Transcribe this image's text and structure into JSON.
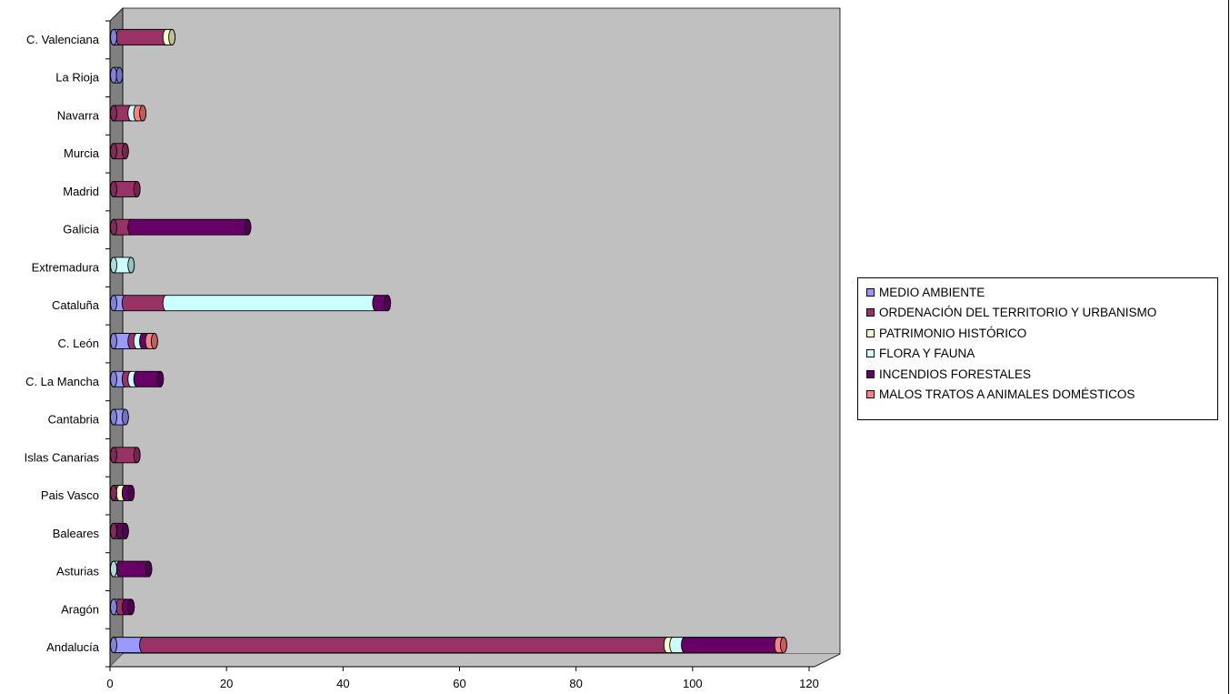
{
  "chart_data": {
    "type": "bar",
    "orientation": "horizontal",
    "stacked": true,
    "categories": [
      "Andalucía",
      "Aragón",
      "Asturias",
      "Baleares",
      "Pais Vasco",
      "Islas Canarias",
      "Cantabria",
      "C. La Mancha",
      "C. León",
      "Cataluña",
      "Extremadura",
      "Galicia",
      "Madrid",
      "Murcia",
      "Navarra",
      "La Rioja",
      "C. Valenciana"
    ],
    "series": [
      {
        "name": "MEDIO AMBIENTE",
        "color": "#9999FF",
        "values": [
          5,
          1,
          0,
          0,
          0,
          0,
          2,
          2,
          3,
          2,
          0,
          0,
          0,
          0,
          0,
          1,
          1
        ]
      },
      {
        "name": "ORDENACIÓN DEL TERRITORIO Y URBANISMO",
        "color": "#993366",
        "values": [
          90,
          1,
          0,
          1,
          1,
          4,
          0,
          1,
          1,
          7,
          0,
          3,
          4,
          2,
          3,
          0,
          8
        ]
      },
      {
        "name": "PATRIMONIO HISTÓRICO",
        "color": "#FFFFCC",
        "values": [
          1,
          0,
          0,
          0,
          1,
          0,
          0,
          0,
          0,
          0,
          0,
          0,
          0,
          0,
          0,
          0,
          1
        ]
      },
      {
        "name": "FLORA Y FAUNA",
        "color": "#CCFFFF",
        "values": [
          2,
          0,
          1,
          0,
          0,
          0,
          0,
          1,
          1,
          36,
          3,
          0,
          0,
          0,
          1,
          0,
          0
        ]
      },
      {
        "name": "INCENDIOS FORESTALES",
        "color": "#660066",
        "values": [
          16,
          1,
          5,
          1,
          1,
          0,
          0,
          4,
          1,
          2,
          0,
          20,
          0,
          0,
          0,
          0,
          0
        ]
      },
      {
        "name": "MALOS TRATOS A ANIMALES DOMÉSTICOS",
        "color": "#FF8080",
        "values": [
          1,
          0,
          0,
          0,
          0,
          0,
          0,
          0,
          1,
          0,
          0,
          0,
          0,
          0,
          1,
          0,
          0
        ]
      }
    ],
    "xlim": [
      0,
      120
    ],
    "xticks": [
      0,
      20,
      40,
      60,
      80,
      100,
      120
    ],
    "grid": false,
    "plot_background": "#C0C0C0",
    "legend_position": "right"
  }
}
